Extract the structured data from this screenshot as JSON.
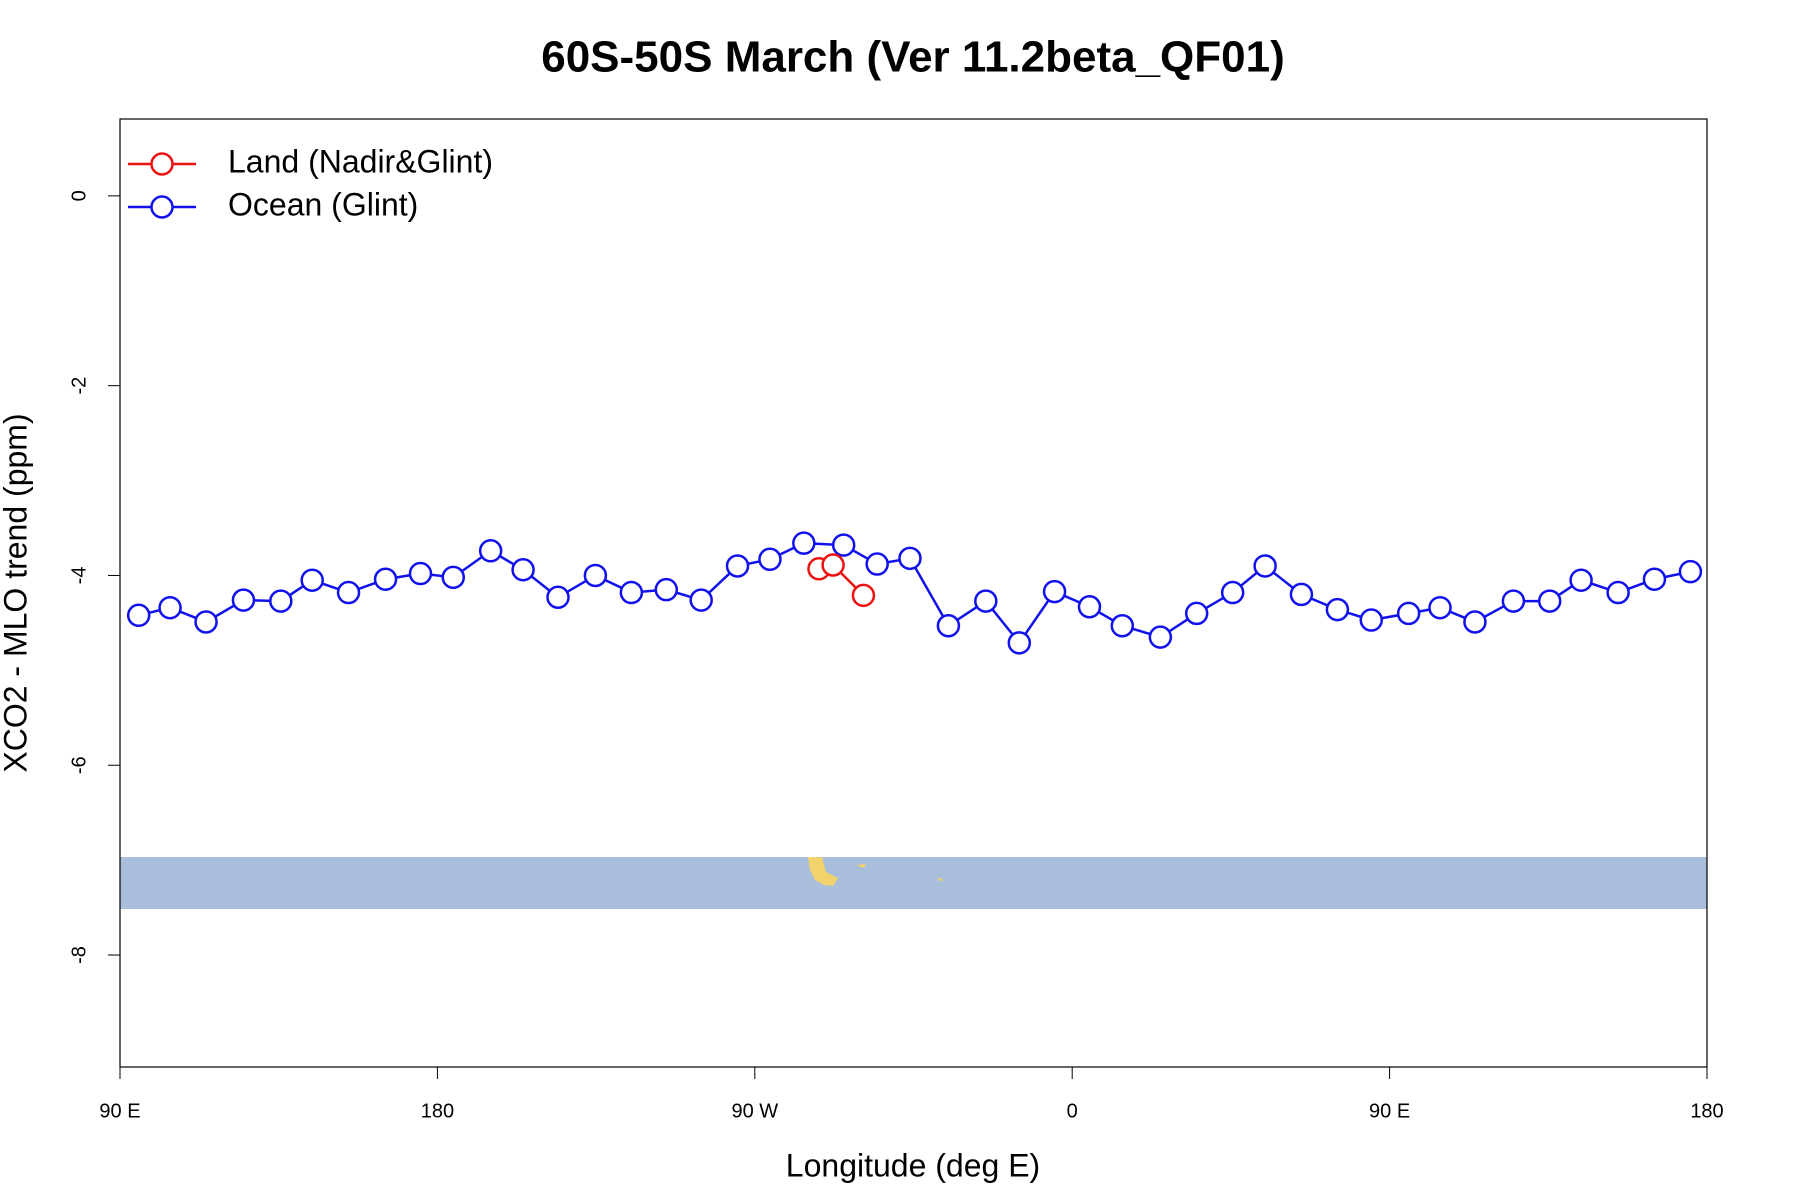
{
  "chart_data": {
    "type": "line",
    "title": "60S-50S March (Ver 11.2beta_QF01)",
    "x_label": "Longitude (deg E)",
    "y_label": "XCO2 - MLO trend (ppm)",
    "xlim": [
      90,
      540
    ],
    "ylim": [
      -9.18,
      0.81
    ],
    "xticks": [
      {
        "value": 90,
        "label": "90 E"
      },
      180,
      {
        "value": 270,
        "label": "90 W"
      },
      {
        "value": 360,
        "label": "0"
      },
      {
        "value": 450,
        "label": "90 E"
      },
      {
        "value": 540,
        "label": "180"
      }
    ],
    "yticks": [
      0,
      -2,
      -4,
      -6,
      -8
    ],
    "legend": "top-left",
    "series": [
      {
        "name": "Land (Nadir&Glint)",
        "color": "#ee1111",
        "x": [
          288.2,
          292.2,
          300.8
        ],
        "values": [
          -3.93,
          -3.89,
          -4.21
        ]
      },
      {
        "name": "Ocean (Glint)",
        "color": "#1111ee",
        "x": [
          95.3,
          104.2,
          114.4,
          125.0,
          135.6,
          144.5,
          154.8,
          165.3,
          175.2,
          184.5,
          195.1,
          204.3,
          214.2,
          224.8,
          235.0,
          244.9,
          254.8,
          265.1,
          274.3,
          283.9,
          295.2,
          304.7,
          314.0,
          324.9,
          335.5,
          345.0,
          355.0,
          364.9,
          374.2,
          385.0,
          395.3,
          405.5,
          414.7,
          425.0,
          435.2,
          444.8,
          455.4,
          464.3,
          474.2,
          485.1,
          495.4,
          504.3,
          514.8,
          525.1,
          535.3
        ],
        "values": [
          -4.42,
          -4.34,
          -4.49,
          -4.26,
          -4.27,
          -4.05,
          -4.18,
          -4.04,
          -3.98,
          -4.02,
          -3.74,
          -3.94,
          -4.23,
          -4.0,
          -4.18,
          -4.15,
          -4.26,
          -3.9,
          -3.83,
          -3.66,
          -3.68,
          -3.88,
          -3.82,
          -4.53,
          -4.27,
          -4.71,
          -4.17,
          -4.33,
          -4.53,
          -4.65,
          -4.4,
          -4.18,
          -3.9,
          -4.2,
          -4.36,
          -4.47,
          -4.4,
          -4.34,
          -4.49,
          -4.27,
          -4.27,
          -4.05,
          -4.18,
          -4.04,
          -3.96
        ]
      }
    ]
  }
}
